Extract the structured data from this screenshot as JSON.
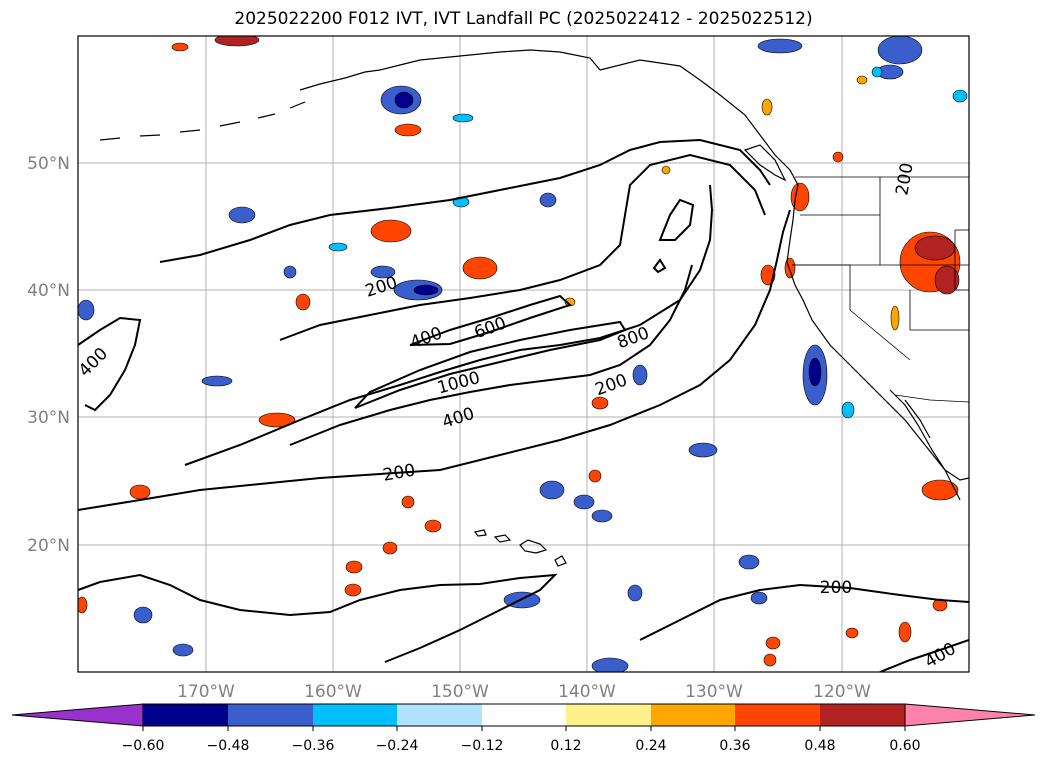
{
  "title": "2025022200 F012 IVT, IVT Landfall PC (2025022412 - 2025022512)",
  "chart_data": {
    "type": "map",
    "projection": "plate-carree",
    "lon_range": [
      180,
      110
    ],
    "lat_range": [
      10,
      60
    ],
    "grid": true,
    "lon_ticks": [
      "170°W",
      "160°W",
      "150°W",
      "140°W",
      "130°W",
      "120°W"
    ],
    "lat_ticks": [
      "20°N",
      "30°N",
      "40°N",
      "50°N"
    ],
    "ivt_contour_labels": [
      "200",
      "200",
      "200",
      "200",
      "200",
      "400",
      "400",
      "400",
      "400",
      "600",
      "800",
      "1000"
    ],
    "colorbar": {
      "ticks": [
        "−0.60",
        "−0.48",
        "−0.36",
        "−0.24",
        "−0.12",
        "0.12",
        "0.24",
        "0.36",
        "0.48",
        "0.60"
      ],
      "colors": [
        "#9932cc",
        "#00008b",
        "#3a5fcd",
        "#00bfff",
        "#b0e2ff",
        "#ffffff",
        "#fff08c",
        "#ffa500",
        "#ff4500",
        "#b22222",
        "#ff82ab"
      ],
      "extend": "both"
    }
  }
}
